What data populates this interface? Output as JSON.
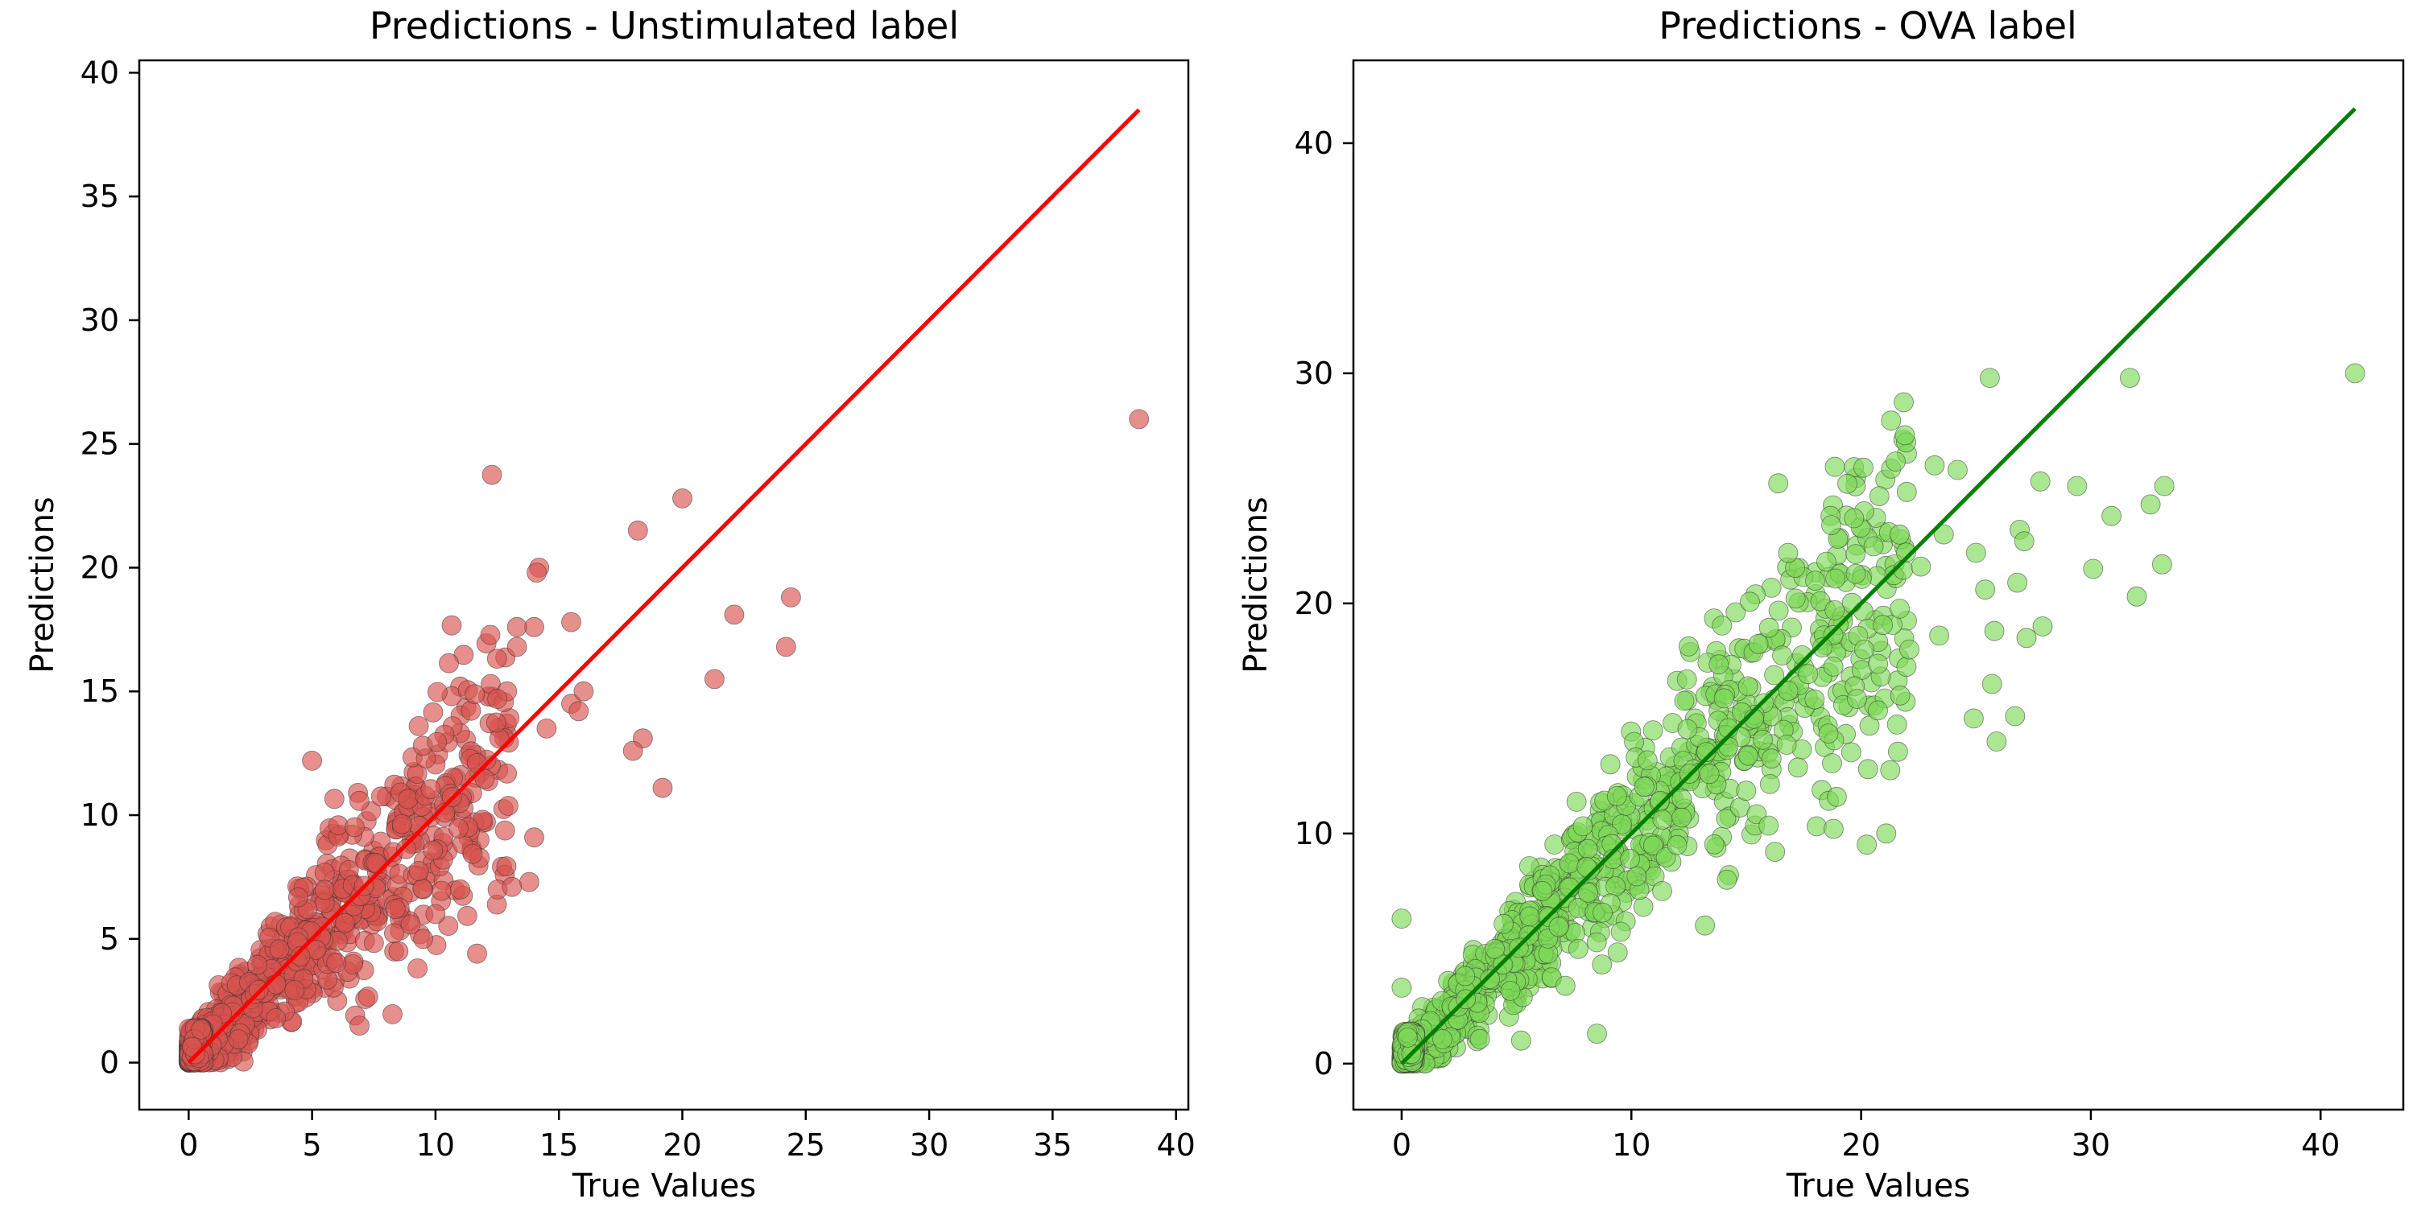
{
  "chart_data": [
    {
      "type": "scatter",
      "title": "Predictions - Unstimulated label",
      "xlabel": "True Values",
      "ylabel": "Predictions",
      "xlim": [
        -2,
        40.5
      ],
      "ylim": [
        -1.9,
        40.5
      ],
      "xticks": [
        0,
        5,
        10,
        15,
        20,
        25,
        30,
        35,
        40
      ],
      "yticks": [
        0,
        5,
        10,
        15,
        20,
        25,
        30,
        35,
        40
      ],
      "grid": false,
      "point_color": "#d9534f",
      "line_color": "#ff0000",
      "reference_line": [
        [
          0,
          0
        ],
        [
          38.5,
          38.5
        ]
      ],
      "outliers": [
        [
          38.5,
          26.0
        ],
        [
          20.0,
          22.8
        ],
        [
          18.2,
          21.5
        ],
        [
          14.2,
          20.0
        ],
        [
          14.1,
          19.8
        ],
        [
          15.5,
          17.8
        ],
        [
          14.0,
          17.6
        ],
        [
          24.4,
          18.8
        ],
        [
          22.1,
          18.1
        ],
        [
          24.2,
          16.8
        ],
        [
          21.3,
          15.5
        ],
        [
          15.5,
          14.5
        ],
        [
          16.0,
          15.0
        ],
        [
          18.4,
          13.1
        ],
        [
          18.0,
          12.6
        ],
        [
          19.2,
          11.1
        ],
        [
          14.0,
          9.1
        ],
        [
          13.8,
          7.3
        ],
        [
          13.1,
          7.1
        ],
        [
          5.0,
          12.2
        ],
        [
          12.9,
          15.0
        ],
        [
          13.3,
          16.8
        ],
        [
          12.5,
          14.7
        ],
        [
          13.3,
          17.6
        ],
        [
          10.0,
          6.0
        ],
        [
          11.0,
          7.0
        ],
        [
          9.5,
          5.0
        ],
        [
          8.5,
          4.5
        ],
        [
          15.8,
          14.2
        ],
        [
          14.5,
          13.5
        ]
      ],
      "cloud": {
        "count": 900,
        "x_max": 13,
        "slope": 1.0,
        "spread": 0.22,
        "seed": 7
      }
    },
    {
      "type": "scatter",
      "title": "Predictions - OVA label",
      "xlabel": "True Values",
      "ylabel": "Predictions",
      "xlim": [
        -2.1,
        43.6
      ],
      "ylim": [
        -2.0,
        43.6
      ],
      "xticks": [
        0,
        10,
        20,
        30,
        40
      ],
      "yticks": [
        0,
        10,
        20,
        30,
        40
      ],
      "grid": false,
      "point_color": "#7ed957",
      "line_color": "#008000",
      "reference_line": [
        [
          0,
          0
        ],
        [
          41.5,
          41.5
        ]
      ],
      "outliers": [
        [
          41.5,
          30.0
        ],
        [
          25.6,
          29.8
        ],
        [
          31.7,
          29.8
        ],
        [
          23.2,
          26.0
        ],
        [
          24.2,
          25.8
        ],
        [
          27.8,
          25.3
        ],
        [
          29.4,
          25.1
        ],
        [
          33.2,
          25.1
        ],
        [
          32.6,
          24.3
        ],
        [
          30.9,
          23.8
        ],
        [
          26.9,
          23.2
        ],
        [
          27.1,
          22.7
        ],
        [
          25.0,
          22.2
        ],
        [
          30.1,
          21.5
        ],
        [
          33.1,
          21.7
        ],
        [
          25.4,
          20.6
        ],
        [
          26.8,
          20.9
        ],
        [
          32.0,
          20.3
        ],
        [
          27.9,
          19.0
        ],
        [
          27.2,
          18.5
        ],
        [
          25.8,
          18.8
        ],
        [
          25.7,
          16.5
        ],
        [
          26.7,
          15.1
        ],
        [
          25.9,
          14.0
        ],
        [
          24.9,
          15.0
        ],
        [
          0.0,
          6.3
        ],
        [
          0.0,
          3.3
        ],
        [
          8.5,
          1.3
        ],
        [
          5.2,
          1.0
        ],
        [
          13.2,
          6.0
        ],
        [
          20.3,
          12.8
        ],
        [
          18.8,
          10.2
        ],
        [
          21.7,
          16.0
        ],
        [
          22.1,
          18.0
        ],
        [
          23.4,
          18.6
        ],
        [
          22.6,
          21.6
        ],
        [
          23.6,
          23.0
        ],
        [
          18.7,
          23.4
        ],
        [
          19.4,
          25.2
        ],
        [
          20.1,
          25.9
        ]
      ],
      "cloud": {
        "count": 1200,
        "x_max": 22,
        "slope": 1.0,
        "spread": 0.17,
        "seed": 11
      }
    }
  ]
}
